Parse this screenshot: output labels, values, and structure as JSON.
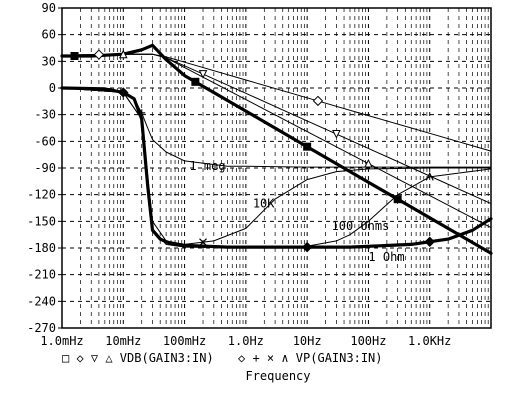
{
  "chart_data": {
    "type": "line",
    "x_scale": "log",
    "xlim": [
      0.001,
      10000
    ],
    "ylim": [
      -270,
      90
    ],
    "grid": true,
    "legend_placement": "bottom",
    "xlabel": "Frequency",
    "ylabel": "",
    "title": "",
    "x_ticks": [
      {
        "value": 0.001,
        "label": "1.0mHz"
      },
      {
        "value": 0.01,
        "label": "10mHz"
      },
      {
        "value": 0.1,
        "label": "100mHz"
      },
      {
        "value": 1,
        "label": "1.0Hz"
      },
      {
        "value": 10,
        "label": "10Hz"
      },
      {
        "value": 100,
        "label": "100Hz"
      },
      {
        "value": 1000,
        "label": "1.0KHz"
      }
    ],
    "y_ticks": [
      {
        "value": 90,
        "label": "90"
      },
      {
        "value": 60,
        "label": "60"
      },
      {
        "value": 30,
        "label": "30"
      },
      {
        "value": 0,
        "label": "0"
      },
      {
        "value": -30,
        "label": "-30"
      },
      {
        "value": -60,
        "label": "-60"
      },
      {
        "value": -90,
        "label": "-90"
      },
      {
        "value": -120,
        "label": "-120"
      },
      {
        "value": -150,
        "label": "-150"
      },
      {
        "value": -180,
        "label": "-180"
      },
      {
        "value": -210,
        "label": "-210"
      },
      {
        "value": -240,
        "label": "-240"
      },
      {
        "value": -270,
        "label": "-270"
      }
    ],
    "legend_text": [
      "□ ◇ ▽ △ VDB(GAIN3:IN)",
      "◇ + × ∧ VP(GAIN3:IN)"
    ],
    "annotations": [
      {
        "text": "1 meg",
        "x": 0.12,
        "y": -88
      },
      {
        "text": "10K",
        "x": 1.3,
        "y": -130
      },
      {
        "text": "100 Ohms",
        "x": 25,
        "y": -155
      },
      {
        "text": "1 Ohm",
        "x": 100,
        "y": -190
      }
    ],
    "series": [
      {
        "group": "magnitude",
        "weight": "thick",
        "marker": "square",
        "marker_x": [
          0.0016,
          0.15,
          10,
          300
        ],
        "x": [
          0.001,
          0.003,
          0.01,
          0.02,
          0.03,
          0.05,
          0.1,
          1,
          10,
          100,
          1000,
          10000
        ],
        "y": [
          36,
          36,
          38,
          43,
          48,
          32,
          14,
          -26,
          -66,
          -106,
          -146,
          -186
        ]
      },
      {
        "group": "magnitude",
        "weight": "thin",
        "marker": "diamond",
        "marker_x": [
          0.004,
          15
        ],
        "x": [
          0.001,
          0.01,
          0.03,
          0.05,
          0.1,
          1,
          10,
          100,
          1000,
          10000
        ],
        "y": [
          37,
          38,
          38,
          35,
          29,
          9,
          -11,
          -31,
          -51,
          -71
        ]
      },
      {
        "group": "magnitude",
        "weight": "thin",
        "marker": "triangle-down",
        "marker_x": [
          0.2,
          30
        ],
        "x": [
          0.001,
          0.01,
          0.03,
          0.05,
          0.1,
          1,
          10,
          100,
          1000,
          10000
        ],
        "y": [
          37,
          38,
          38,
          34,
          25,
          -6,
          -37,
          -68,
          -99,
          -130
        ]
      },
      {
        "group": "magnitude",
        "weight": "thin",
        "marker": "triangle-up",
        "marker_x": [
          0.01,
          100
        ],
        "x": [
          0.001,
          0.01,
          0.03,
          0.05,
          0.1,
          1,
          10,
          100,
          1000,
          10000
        ],
        "y": [
          37,
          38,
          38,
          34,
          23,
          -13,
          -49,
          -85,
          -121,
          -157
        ]
      },
      {
        "group": "phase",
        "weight": "thick",
        "marker": "diamond",
        "marker_x": [
          0.01,
          10,
          1000
        ],
        "x": [
          0.001,
          0.005,
          0.01,
          0.015,
          0.02,
          0.025,
          0.03,
          0.04,
          0.06,
          0.1,
          0.5,
          5,
          50,
          500,
          2000,
          5000,
          10000
        ],
        "y": [
          0,
          -1,
          -5,
          -12,
          -35,
          -110,
          -160,
          -170,
          -175,
          -177,
          -179,
          -179,
          -179,
          -176,
          -170,
          -160,
          -147
        ]
      },
      {
        "group": "phase",
        "weight": "thin",
        "marker": "plus",
        "marker_x": [
          0.02
        ],
        "x": [
          0.001,
          0.01,
          0.015,
          0.02,
          0.025,
          0.03,
          0.05,
          0.1,
          0.5,
          1,
          10,
          100,
          1000,
          10000
        ],
        "y": [
          0,
          -5,
          -12,
          -28,
          -45,
          -58,
          -72,
          -82,
          -88,
          -88,
          -89,
          -89,
          -89,
          -89
        ]
      },
      {
        "group": "phase",
        "weight": "thin",
        "marker": "cross",
        "marker_x": [
          0.2
        ],
        "x": [
          0.001,
          0.01,
          0.02,
          0.03,
          0.05,
          0.1,
          0.3,
          1,
          3,
          10,
          30,
          100,
          1000,
          10000
        ],
        "y": [
          0,
          -5,
          -35,
          -150,
          -172,
          -176,
          -172,
          -158,
          -125,
          -103,
          -94,
          -91,
          -90,
          -90
        ]
      },
      {
        "group": "phase",
        "weight": "thin",
        "marker": "caret",
        "marker_x": [
          1000
        ],
        "x": [
          0.001,
          0.01,
          0.02,
          0.03,
          0.05,
          0.1,
          1,
          10,
          30,
          50,
          100,
          300,
          1000,
          10000
        ],
        "y": [
          0,
          -5,
          -35,
          -158,
          -176,
          -179,
          -180,
          -178,
          -172,
          -165,
          -150,
          -120,
          -100,
          -91
        ]
      }
    ]
  }
}
